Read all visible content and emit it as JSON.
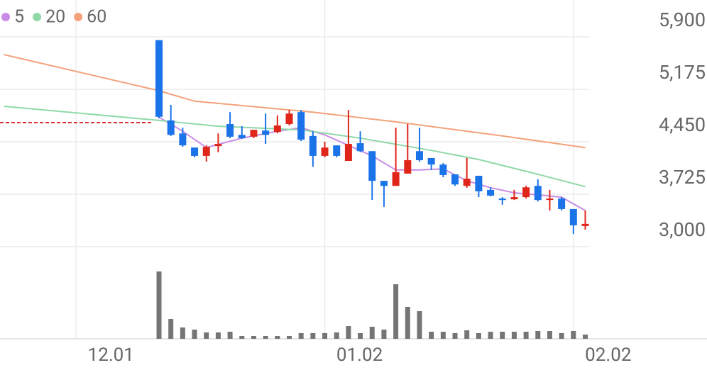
{
  "chart_data": {
    "type": "candlestick",
    "x": [
      0,
      1,
      2,
      3,
      4,
      5,
      6,
      7,
      8,
      9,
      10,
      11,
      12,
      13,
      14,
      15,
      16,
      17,
      18,
      19,
      20,
      21,
      22,
      23,
      24,
      25,
      26,
      27,
      28,
      29,
      30,
      31,
      32,
      33,
      34,
      35,
      36
    ],
    "candles": [
      [
        5855,
        5855,
        4775,
        4795
      ],
      [
        4745,
        4960,
        4530,
        4545
      ],
      [
        4565,
        4645,
        4380,
        4400
      ],
      [
        4370,
        4370,
        4235,
        4255
      ],
      [
        4255,
        4400,
        4175,
        4380
      ],
      [
        4390,
        4565,
        4305,
        4420
      ],
      [
        4695,
        4860,
        4500,
        4520
      ],
      [
        4545,
        4665,
        4490,
        4500
      ],
      [
        4520,
        4615,
        4500,
        4615
      ],
      [
        4605,
        4840,
        4420,
        4545
      ],
      [
        4585,
        4815,
        4565,
        4675
      ],
      [
        4695,
        4890,
        4675,
        4840
      ],
      [
        4860,
        4890,
        4460,
        4480
      ],
      [
        4530,
        4595,
        4105,
        4255
      ],
      [
        4255,
        4450,
        4235,
        4370
      ],
      [
        4400,
        4400,
        4235,
        4255
      ],
      [
        4185,
        4890,
        4185,
        4420
      ],
      [
        4430,
        4595,
        4305,
        4320
      ],
      [
        4320,
        4320,
        3645,
        3910
      ],
      [
        3910,
        3910,
        3550,
        3840
      ],
      [
        3840,
        4645,
        3840,
        4030
      ],
      [
        4010,
        4695,
        4010,
        4195
      ],
      [
        4320,
        4645,
        4175,
        4195
      ],
      [
        4225,
        4225,
        4060,
        4135
      ],
      [
        4135,
        4155,
        3960,
        3990
      ],
      [
        4000,
        4000,
        3840,
        3860
      ],
      [
        3840,
        4225,
        3815,
        3940
      ],
      [
        3980,
        3980,
        3685,
        3765
      ],
      [
        3785,
        3820,
        3695,
        3705
      ],
      [
        3665,
        3685,
        3580,
        3645
      ],
      [
        3655,
        3785,
        3645,
        3685
      ],
      [
        3685,
        3840,
        3665,
        3820
      ],
      [
        3840,
        3930,
        3625,
        3645
      ],
      [
        3645,
        3785,
        3500,
        3665
      ],
      [
        3665,
        3685,
        3500,
        3520
      ],
      [
        3520,
        3520,
        3175,
        3295
      ],
      [
        3285,
        3500,
        3235,
        3315
      ]
    ],
    "up_color": "#e0251b",
    "down_color": "#1a73e8",
    "reference_line": 4715,
    "reference_color": "#d9303a",
    "series": [
      {
        "name": "5",
        "color": "#c98ce6",
        "x": [
          0,
          2,
          4,
          7,
          10,
          12,
          14,
          16,
          18,
          20,
          22,
          24,
          26,
          28,
          30,
          32,
          34,
          36
        ],
        "values": [
          4790,
          4595,
          4370,
          4500,
          4595,
          4645,
          4545,
          4400,
          4255,
          4060,
          4060,
          4075,
          3910,
          3815,
          3745,
          3715,
          3685,
          3500
        ]
      },
      {
        "name": "20",
        "color": "#8fd9a8",
        "x": [
          -13.1,
          0,
          5,
          12,
          17,
          23,
          27,
          32,
          36
        ],
        "values": [
          4940,
          4745,
          4665,
          4615,
          4500,
          4330,
          4205,
          4000,
          3830
        ]
      },
      {
        "name": "60",
        "color": "#f4a27c",
        "x": [
          -13.1,
          0,
          3,
          13,
          20,
          29,
          36
        ],
        "values": [
          5655,
          5155,
          5010,
          4860,
          4725,
          4530,
          4370
        ]
      }
    ],
    "volume": [
      95,
      28,
      16,
      13,
      9,
      9,
      10,
      4,
      4,
      4,
      4,
      4,
      8,
      8,
      8,
      9,
      18,
      8,
      17,
      13,
      77,
      45,
      39,
      10,
      10,
      8,
      12,
      8,
      10,
      10,
      10,
      10,
      11,
      11,
      8,
      11,
      6
    ],
    "volume_color": "#757575",
    "vlim": [
      0,
      100
    ],
    "ylim": [
      3000,
      5900
    ],
    "yticks": [
      {
        "value": 3000,
        "label": "3,000"
      },
      {
        "value": 3725,
        "label": "3,725"
      },
      {
        "value": 4450,
        "label": "4,450"
      },
      {
        "value": 5175,
        "label": "5,175"
      },
      {
        "value": 5900,
        "label": "5,900"
      }
    ],
    "xlim": [
      -13.43,
      36.33
    ],
    "xticks": [
      {
        "value": -7,
        "label": "12.01"
      },
      {
        "value": 14,
        "label": "01.02"
      },
      {
        "value": 35,
        "label": "02.02"
      }
    ],
    "grid": true
  }
}
